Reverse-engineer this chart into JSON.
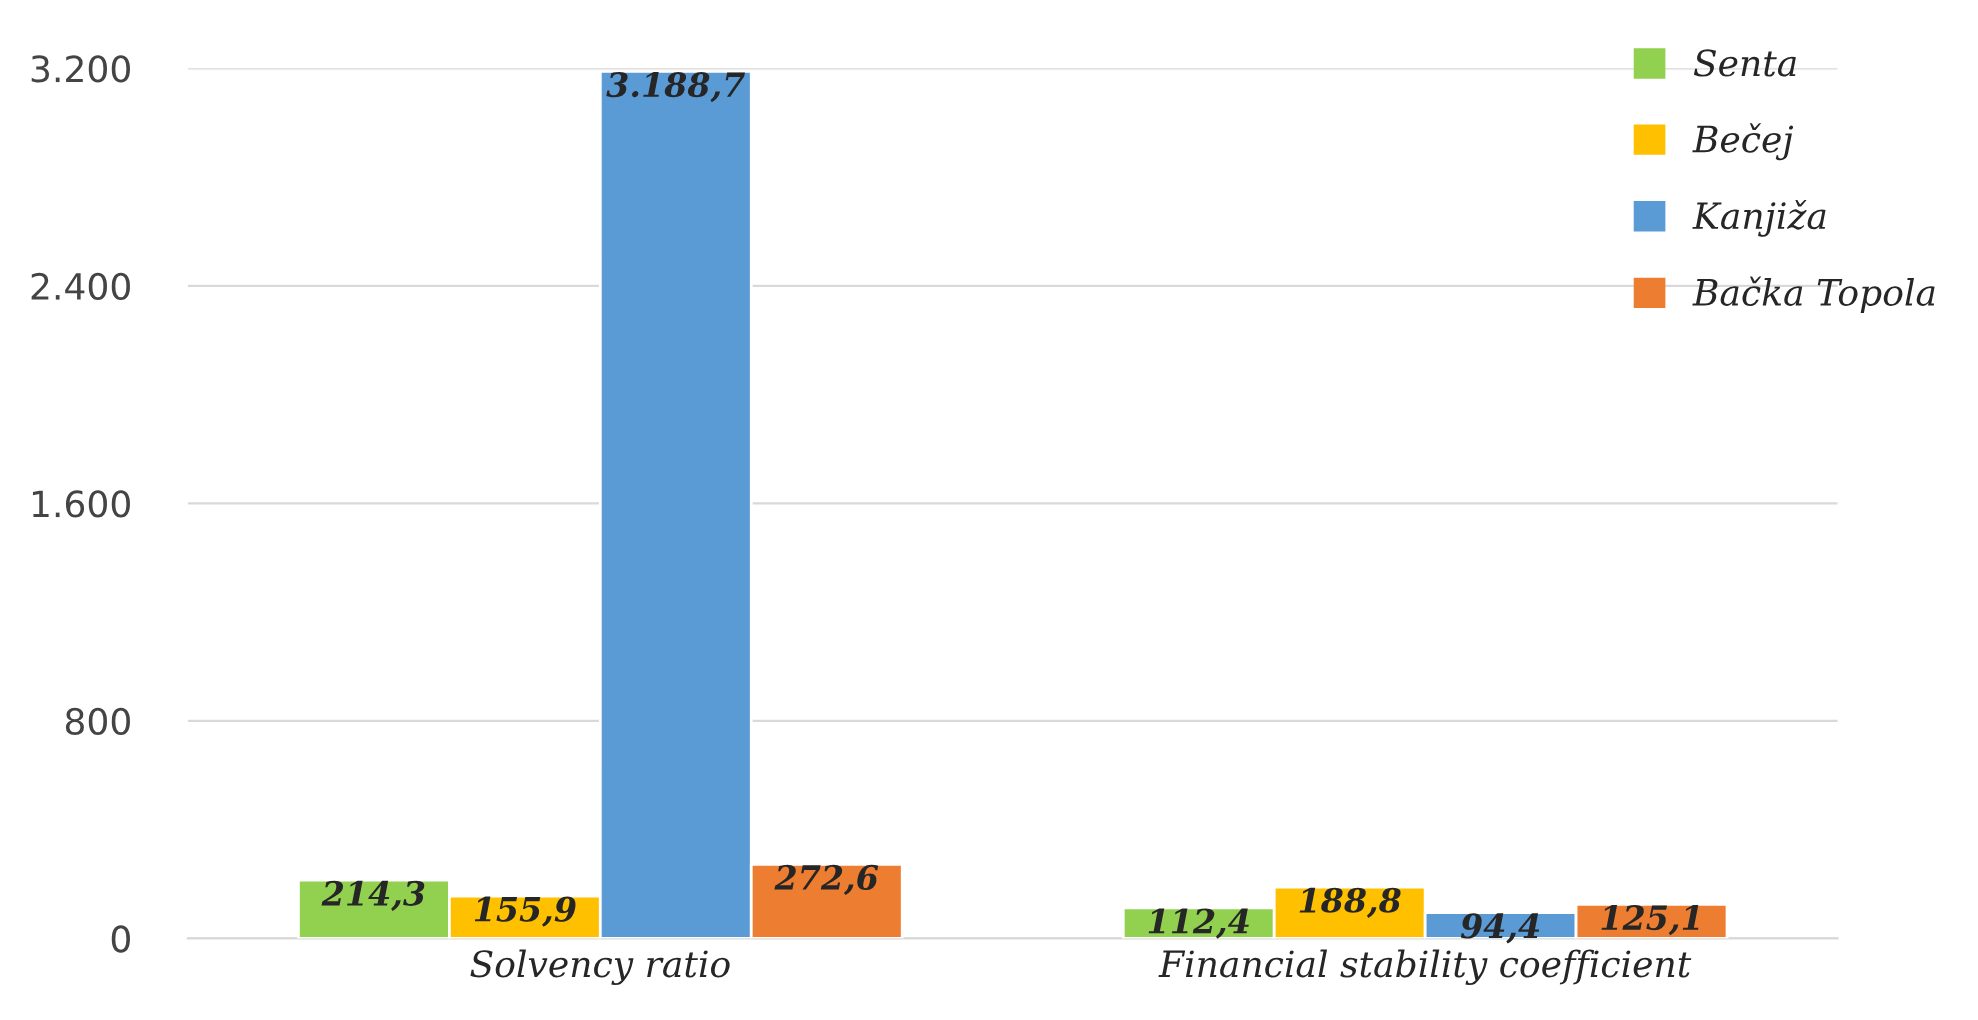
{
  "chart_data": {
    "type": "bar",
    "categories": [
      "Solvency ratio",
      "Financial stability coefficient"
    ],
    "series": [
      {
        "name": "Senta",
        "color": "#92d050",
        "values": [
          214.3,
          112.4
        ],
        "value_labels": [
          "214,3",
          "112,4"
        ]
      },
      {
        "name": "Bečej",
        "color": "#ffc000",
        "values": [
          155.9,
          188.8
        ],
        "value_labels": [
          "155,9",
          "188,8"
        ]
      },
      {
        "name": "Kanjiža",
        "color": "#5b9bd5",
        "values": [
          3188.7,
          94.4
        ],
        "value_labels": [
          "3.188,7",
          "94,4"
        ]
      },
      {
        "name": "Bačka Topola",
        "color": "#ed7d31",
        "values": [
          272.6,
          125.1
        ],
        "value_labels": [
          "272,6",
          "125,1"
        ]
      }
    ],
    "ylim": [
      0,
      3200
    ],
    "yticks": [
      {
        "value": 0,
        "label": "0"
      },
      {
        "value": 800,
        "label": "800"
      },
      {
        "value": 1600,
        "label": "1.600"
      },
      {
        "value": 2400,
        "label": "2.400"
      },
      {
        "value": 3200,
        "label": "3.200"
      }
    ],
    "grid": "y",
    "legend": "top right"
  }
}
